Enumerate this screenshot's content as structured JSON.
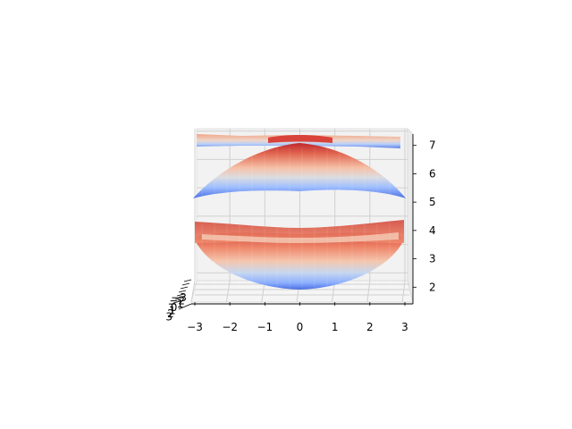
{
  "chart_data": {
    "type": "surface3d",
    "title": "",
    "xlabel": "",
    "ylabel": "",
    "zlabel": "",
    "xlim": [
      -3,
      3
    ],
    "ylim": [
      -3,
      3
    ],
    "zlim": [
      1.6,
      7.4
    ],
    "x_ticks": [
      "−3",
      "−2",
      "−1",
      "0",
      "1",
      "2",
      "3"
    ],
    "y_ticks": [
      "−3",
      "−2",
      "−1",
      "0",
      "1",
      "2",
      "3"
    ],
    "z_ticks": [
      "2",
      "3",
      "4",
      "5",
      "6",
      "7"
    ],
    "x_tick_values": [
      -3,
      -2,
      -1,
      0,
      1,
      2,
      3
    ],
    "z_tick_values": [
      2,
      3,
      4,
      5,
      6,
      7
    ],
    "colormap": "coolwarm",
    "grid": true,
    "surfaces": [
      {
        "shape": "bowl",
        "z_center": 2.0,
        "z_edge": 4.0
      },
      {
        "shape": "dome",
        "z_center": 7.3,
        "z_edge": 5.2
      },
      {
        "shape": "flat-sheet",
        "z_min": 7.0,
        "z_max": 7.3
      }
    ]
  }
}
